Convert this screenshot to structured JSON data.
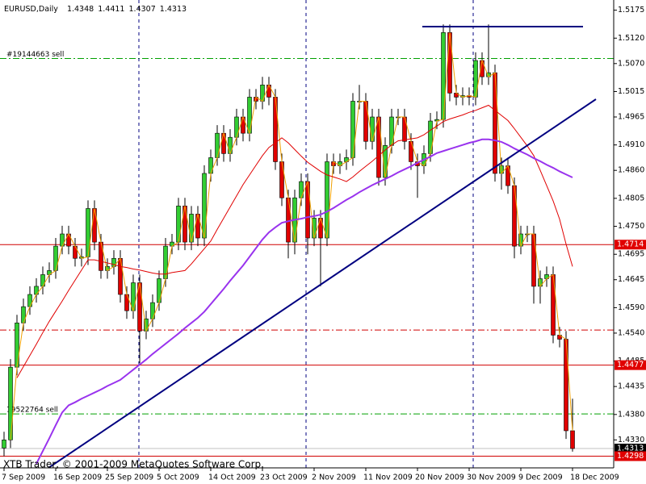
{
  "chart_data": {
    "type": "candlestick",
    "title": "EURUSD,Daily",
    "footer": "XTB Trader, © 2001-2009 MetaQuotes Software Corp.",
    "categories": [
      "7 Sep 2009",
      null,
      null,
      null,
      null,
      null,
      null,
      null,
      "16 Sep 2009",
      null,
      null,
      null,
      null,
      null,
      null,
      null,
      "25 Sep 2009",
      null,
      null,
      null,
      null,
      null,
      null,
      null,
      "5 Oct 2009",
      null,
      null,
      null,
      null,
      null,
      null,
      null,
      "14 Oct 2009",
      null,
      null,
      null,
      null,
      null,
      null,
      null,
      "23 Oct 2009",
      null,
      null,
      null,
      null,
      null,
      null,
      null,
      "2 Nov 2009",
      null,
      null,
      null,
      null,
      null,
      null,
      null,
      "11 Nov 2009",
      null,
      null,
      null,
      null,
      null,
      null,
      null,
      "20 Nov 2009",
      null,
      null,
      null,
      null,
      null,
      null,
      null,
      "30 Nov 2009",
      null,
      null,
      null,
      null,
      null,
      null,
      null,
      "9 Dec 2009",
      null,
      null,
      null,
      null,
      null,
      null,
      null,
      "18 Dec 2009"
    ],
    "open": [
      1.4314,
      1.433,
      1.4473,
      1.456,
      1.4592,
      1.4616,
      1.4632,
      1.4655,
      1.4663,
      1.4711,
      1.4735,
      1.4711,
      1.4687,
      1.469,
      1.4785,
      1.4719,
      1.4663,
      1.4671,
      1.4687,
      1.4616,
      1.4584,
      1.4639,
      1.4544,
      1.4568,
      1.46,
      1.4647,
      1.4711,
      1.4719,
      1.479,
      1.4719,
      1.4774,
      1.4727,
      1.4854,
      1.4885,
      1.4933,
      1.4893,
      1.4925,
      1.4965,
      1.4933,
      1.5004,
      1.4996,
      1.5028,
      1.5004,
      1.4877,
      1.4806,
      1.4719,
      1.4806,
      1.4838,
      1.4727,
      1.4766,
      1.4727,
      1.4877,
      1.4869,
      1.4877,
      1.4885,
      1.4996,
      1.4996,
      1.4917,
      1.4965,
      1.4846,
      1.4909,
      1.4965,
      1.4965,
      1.4917,
      1.4877,
      1.4869,
      1.4893,
      1.4957,
      1.496,
      1.5131,
      1.5012,
      1.5004,
      1.5007,
      1.5004,
      1.5076,
      1.5044,
      1.5052,
      1.4854,
      1.4869,
      1.483,
      1.4711,
      1.4735,
      1.4735,
      1.4632,
      1.4647,
      1.4655,
      1.4536,
      1.4528,
      1.4348
    ],
    "high": [
      1.4346,
      1.4489,
      1.4576,
      1.4608,
      1.4632,
      1.4648,
      1.4671,
      1.4679,
      1.4727,
      1.4751,
      1.4751,
      1.4727,
      1.4706,
      1.4801,
      1.4801,
      1.4735,
      1.4687,
      1.4703,
      1.4703,
      1.4632,
      1.4655,
      1.4655,
      1.4584,
      1.4616,
      1.4663,
      1.4727,
      1.4735,
      1.4806,
      1.4806,
      1.479,
      1.479,
      1.487,
      1.4901,
      1.4949,
      1.4949,
      1.4941,
      1.4981,
      1.4981,
      1.502,
      1.502,
      1.5044,
      1.5044,
      1.502,
      1.4893,
      1.4822,
      1.4822,
      1.4854,
      1.4854,
      1.4782,
      1.4782,
      1.4893,
      1.4893,
      1.4893,
      1.4901,
      1.5012,
      1.5028,
      1.5012,
      1.4981,
      1.4981,
      1.4925,
      1.4981,
      1.4981,
      1.4981,
      1.4933,
      1.4893,
      1.4909,
      1.4973,
      1.4976,
      1.5147,
      1.5147,
      1.5028,
      1.5023,
      1.5023,
      1.5092,
      1.5092,
      1.5147,
      1.5068,
      1.4885,
      1.4885,
      1.4846,
      1.4751,
      1.4751,
      1.4751,
      1.4663,
      1.4671,
      1.4671,
      1.4552,
      1.4544,
      1.4411
    ],
    "low": [
      1.4298,
      1.4314,
      1.4457,
      1.4544,
      1.4576,
      1.46,
      1.4616,
      1.4639,
      1.4647,
      1.4695,
      1.4695,
      1.4671,
      1.4671,
      1.4674,
      1.4703,
      1.4647,
      1.4647,
      1.4655,
      1.46,
      1.4568,
      1.4568,
      1.4481,
      1.4528,
      1.4552,
      1.4584,
      1.4631,
      1.4695,
      1.4703,
      1.4703,
      1.4703,
      1.4711,
      1.4711,
      1.4838,
      1.4869,
      1.4877,
      1.4877,
      1.4909,
      1.4917,
      1.4917,
      1.498,
      1.498,
      1.4988,
      1.4861,
      1.479,
      1.4687,
      1.4695,
      1.479,
      1.4695,
      1.4711,
      1.4632,
      1.4711,
      1.4853,
      1.4853,
      1.4861,
      1.4869,
      1.498,
      1.4901,
      1.4901,
      1.483,
      1.483,
      1.4893,
      1.4949,
      1.4901,
      1.4861,
      1.4806,
      1.4853,
      1.4877,
      1.4941,
      1.4944,
      1.4996,
      1.4988,
      1.4988,
      1.4988,
      1.4988,
      1.5028,
      1.5028,
      1.4838,
      1.4822,
      1.4814,
      1.4687,
      1.4695,
      1.4719,
      1.4598,
      1.4598,
      1.4631,
      1.452,
      1.4512,
      1.4332,
      1.4307
    ],
    "close": [
      1.433,
      1.4473,
      1.456,
      1.4592,
      1.4616,
      1.4632,
      1.4655,
      1.4663,
      1.4711,
      1.4735,
      1.4711,
      1.4687,
      1.469,
      1.4785,
      1.4719,
      1.4663,
      1.4671,
      1.4687,
      1.4616,
      1.4584,
      1.4639,
      1.4544,
      1.4568,
      1.46,
      1.4647,
      1.4711,
      1.4719,
      1.479,
      1.4719,
      1.4774,
      1.4727,
      1.4854,
      1.4885,
      1.4933,
      1.4893,
      1.4925,
      1.4965,
      1.4933,
      1.5004,
      1.4996,
      1.5028,
      1.5004,
      1.4877,
      1.4806,
      1.4719,
      1.4806,
      1.4838,
      1.4727,
      1.4766,
      1.4727,
      1.4877,
      1.4869,
      1.4877,
      1.4885,
      1.4996,
      1.4996,
      1.4917,
      1.4965,
      1.4846,
      1.4909,
      1.4965,
      1.4965,
      1.4917,
      1.4877,
      1.4869,
      1.4893,
      1.4957,
      1.496,
      1.5131,
      1.5012,
      1.5004,
      1.5007,
      1.5004,
      1.5076,
      1.5044,
      1.5052,
      1.4854,
      1.4869,
      1.483,
      1.4711,
      1.4735,
      1.4735,
      1.4632,
      1.4647,
      1.4655,
      1.4536,
      1.4528,
      1.4348,
      1.4313
    ],
    "up_color": "#32cd32",
    "down_color": "#e00000",
    "indicators": [
      {
        "color": "#f0a000",
        "width": 1,
        "values": [
          null,
          1.433,
          1.4473,
          1.456,
          1.4592,
          1.4616,
          1.4632,
          1.4655,
          1.4663,
          1.4711,
          1.4735,
          1.4711,
          1.4687,
          1.469,
          1.4785,
          1.4719,
          1.4663,
          1.4671,
          1.4687,
          1.4616,
          1.4584,
          1.4639,
          1.4544,
          1.4568,
          1.46,
          1.4647,
          1.4711,
          1.4719,
          1.479,
          1.4719,
          1.4774,
          1.4727,
          1.4854,
          1.4885,
          1.4933,
          1.4893,
          1.4925,
          1.4965,
          1.4933,
          1.5004,
          1.4996,
          1.5028,
          1.5004,
          1.4877,
          1.4806,
          1.4719,
          1.4806,
          1.4838,
          1.4727,
          1.4766,
          1.4727,
          1.4877,
          1.4869,
          1.4877,
          1.4885,
          1.4996,
          1.4996,
          1.4917,
          1.4965,
          1.4846,
          1.4909,
          1.4965,
          1.4965,
          1.4917,
          1.4877,
          1.4869,
          1.4893,
          1.4957,
          1.496,
          1.5131,
          1.5012,
          1.5004,
          1.5007,
          1.5004,
          1.5076,
          1.5044,
          1.5052,
          1.4854,
          1.4869,
          1.483,
          1.4711,
          1.4735,
          1.4735,
          1.4632,
          1.4647,
          1.4655,
          1.4536,
          1.4528,
          1.4348
        ]
      },
      {
        "color": "#e00000",
        "width": 1,
        "values": [
          null,
          null,
          1.4452,
          1.4474,
          1.4496,
          1.4518,
          1.4541,
          1.4563,
          1.4583,
          1.4603,
          1.4624,
          1.4644,
          1.4664,
          1.4684,
          1.4684,
          1.4681,
          1.4678,
          1.4675,
          1.4671,
          1.4669,
          1.4666,
          1.4664,
          1.4661,
          1.4658,
          1.4656,
          1.4656,
          1.4659,
          1.4661,
          1.4663,
          1.4676,
          1.4691,
          1.4706,
          1.4721,
          1.4744,
          1.4766,
          1.4788,
          1.481,
          1.4832,
          1.4851,
          1.487,
          1.4889,
          1.4905,
          1.4914,
          1.4924,
          1.4914,
          1.4901,
          1.4888,
          1.4876,
          1.4867,
          1.4858,
          1.4851,
          1.4847,
          1.4843,
          1.4838,
          1.4847,
          1.4858,
          1.4868,
          1.4878,
          1.4889,
          1.49,
          1.491,
          1.4918,
          1.492,
          1.4922,
          1.4924,
          1.493,
          1.4939,
          1.4947,
          1.4956,
          1.4961,
          1.4965,
          1.4969,
          1.4974,
          1.4978,
          1.4983,
          1.4988,
          1.4978,
          1.4968,
          1.4958,
          1.4942,
          1.4925,
          1.4908,
          1.4889,
          1.486,
          1.483,
          1.48,
          1.4764,
          1.4715,
          1.4671
        ]
      },
      {
        "color": "#9933ee",
        "width": 2,
        "values": [
          null,
          null,
          null,
          null,
          null,
          1.4283,
          1.4308,
          1.4333,
          1.4359,
          1.4384,
          1.4398,
          1.4404,
          1.4411,
          1.4417,
          1.4423,
          1.4429,
          1.4436,
          1.4442,
          1.4448,
          1.4458,
          1.4468,
          1.4478,
          1.4488,
          1.4499,
          1.4509,
          1.4519,
          1.4529,
          1.4539,
          1.455,
          1.456,
          1.457,
          1.4582,
          1.4597,
          1.4612,
          1.4627,
          1.4643,
          1.4658,
          1.4673,
          1.469,
          1.4707,
          1.4724,
          1.4738,
          1.4748,
          1.4757,
          1.476,
          1.4763,
          1.4765,
          1.4768,
          1.477,
          1.4773,
          1.4779,
          1.4786,
          1.4794,
          1.4802,
          1.4809,
          1.4817,
          1.4824,
          1.4831,
          1.4837,
          1.4843,
          1.4849,
          1.4856,
          1.4862,
          1.4868,
          1.4875,
          1.4881,
          1.4887,
          1.4894,
          1.4898,
          1.4902,
          1.4906,
          1.491,
          1.4914,
          1.4917,
          1.4921,
          1.4921,
          1.4919,
          1.4916,
          1.491,
          1.4903,
          1.4897,
          1.4891,
          1.4884,
          1.4878,
          1.4871,
          1.4865,
          1.4858,
          1.4852,
          1.4846
        ]
      }
    ],
    "levels": [
      {
        "value": 1.508,
        "color": "#00a000",
        "style": "dashdot",
        "text": "#19144663 sell"
      },
      {
        "value": 1.4714,
        "color": "#d00000",
        "style": "solid",
        "tagged": true,
        "tag_color": "#e00000"
      },
      {
        "value": 1.4546,
        "color": "#d00000",
        "style": "dashdot"
      },
      {
        "value": 1.4477,
        "color": "#d00000",
        "style": "solid",
        "tagged": true,
        "tag_color": "#e00000"
      },
      {
        "value": 1.4381,
        "color": "#00a000",
        "style": "dashdot",
        "text": "19522764 sell"
      },
      {
        "value": 1.4313,
        "color": "#c0c0c0",
        "style": "solid",
        "tagged": true,
        "tag_color": "#000000"
      },
      {
        "value": 1.4298,
        "color": "#d00000",
        "style": "solid",
        "tagged": true,
        "tag_color": "#e00000"
      }
    ],
    "ylim": [
      1.4275,
      1.5195
    ],
    "yticks": [
      1.5175,
      {
        "value": 1.512,
        "label": "1.5120"
      },
      {
        "value": 1.507,
        "label": "1.5070"
      },
      1.5015,
      1.4965,
      {
        "value": 1.491,
        "label": "1.4910"
      },
      {
        "value": 1.486,
        "label": "1.4860"
      },
      1.4805,
      {
        "value": 1.475,
        "label": "1.4750"
      },
      1.4695,
      1.4645,
      {
        "value": 1.459,
        "label": "1.4590"
      },
      {
        "value": 1.454,
        "label": "1.4540"
      },
      1.4485,
      1.4435,
      {
        "value": 1.438,
        "label": "1.4380"
      },
      {
        "value": 1.433,
        "label": "1.4330"
      }
    ]
  }
}
